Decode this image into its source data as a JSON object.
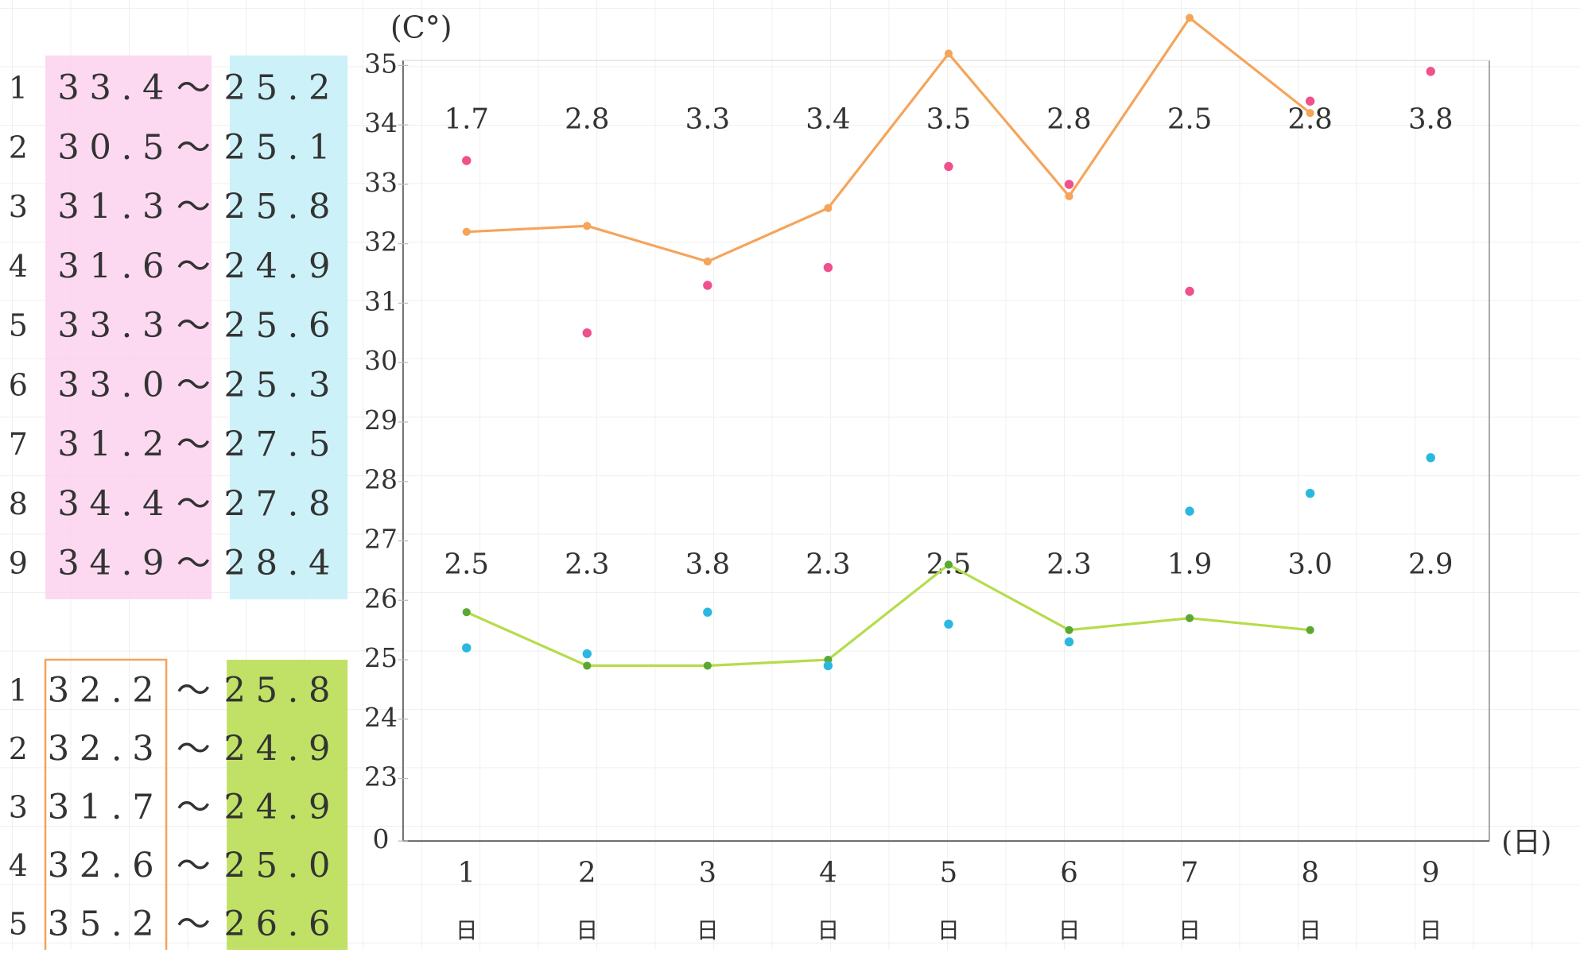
{
  "chart_data": {
    "type": "line",
    "y_unit_label": "(C°)",
    "x_unit_label": "(日)",
    "categories": [
      "1",
      "2",
      "3",
      "4",
      "5",
      "6",
      "7",
      "8",
      "9"
    ],
    "day_marks": [
      "日",
      "日",
      "日",
      "日",
      "日",
      "日",
      "日",
      "日",
      "日"
    ],
    "ylim": [
      0,
      36
    ],
    "yticks": [
      0,
      23,
      24,
      25,
      26,
      27,
      28,
      29,
      30,
      31,
      32,
      33,
      34,
      35
    ],
    "series": [
      {
        "name": "orange-high",
        "kind": "line",
        "color": "#f5a45a",
        "values": [
          32.2,
          32.3,
          31.7,
          32.6,
          35.2,
          32.8,
          35.8,
          34.2,
          null
        ]
      },
      {
        "name": "green-low",
        "kind": "line",
        "color": "#b5dc4a",
        "point_color": "#5aa832",
        "values": [
          25.8,
          24.9,
          24.9,
          25.0,
          26.6,
          25.5,
          25.7,
          25.5,
          null
        ]
      },
      {
        "name": "pink-high",
        "kind": "scatter",
        "color": "#f0508c",
        "values": [
          33.4,
          30.5,
          31.3,
          31.6,
          33.3,
          33.0,
          31.2,
          34.4,
          34.9
        ]
      },
      {
        "name": "cyan-low",
        "kind": "scatter",
        "color": "#2ab8e0",
        "values": [
          25.2,
          25.1,
          25.8,
          24.9,
          25.6,
          25.3,
          27.5,
          27.8,
          28.4
        ]
      }
    ],
    "upper_notes": {
      "color": "#9a2fc4",
      "texts": [
        "1.7",
        "2.8",
        "3.3",
        "3.4",
        "3.5",
        "2.8",
        "2.5",
        "2.8",
        "3.8"
      ]
    },
    "lower_notes": {
      "color": "#e0409c",
      "texts": [
        "2.5",
        "2.3",
        "3.8",
        "2.3",
        "2.5",
        "2.3",
        "1.9",
        "3.0",
        "2.9"
      ]
    },
    "separator": "〜",
    "table_top": [
      {
        "n": "1",
        "high": "33.4",
        "low": "25.2"
      },
      {
        "n": "2",
        "high": "30.5",
        "low": "25.1"
      },
      {
        "n": "3",
        "high": "31.3",
        "low": "25.8"
      },
      {
        "n": "4",
        "high": "31.6",
        "low": "24.9"
      },
      {
        "n": "5",
        "high": "33.3",
        "low": "25.6"
      },
      {
        "n": "6",
        "high": "33.0",
        "low": "25.3"
      },
      {
        "n": "7",
        "high": "31.2",
        "low": "27.5"
      },
      {
        "n": "8",
        "high": "34.4",
        "low": "27.8"
      },
      {
        "n": "9",
        "high": "34.9",
        "low": "28.4"
      }
    ],
    "table_bottom": [
      {
        "n": "1",
        "high": "32.2",
        "low": "25.8"
      },
      {
        "n": "2",
        "high": "32.3",
        "low": "24.9"
      },
      {
        "n": "3",
        "high": "31.7",
        "low": "24.9"
      },
      {
        "n": "4",
        "high": "32.6",
        "low": "25.0"
      },
      {
        "n": "5",
        "high": "35.2",
        "low": "26.6"
      }
    ]
  }
}
